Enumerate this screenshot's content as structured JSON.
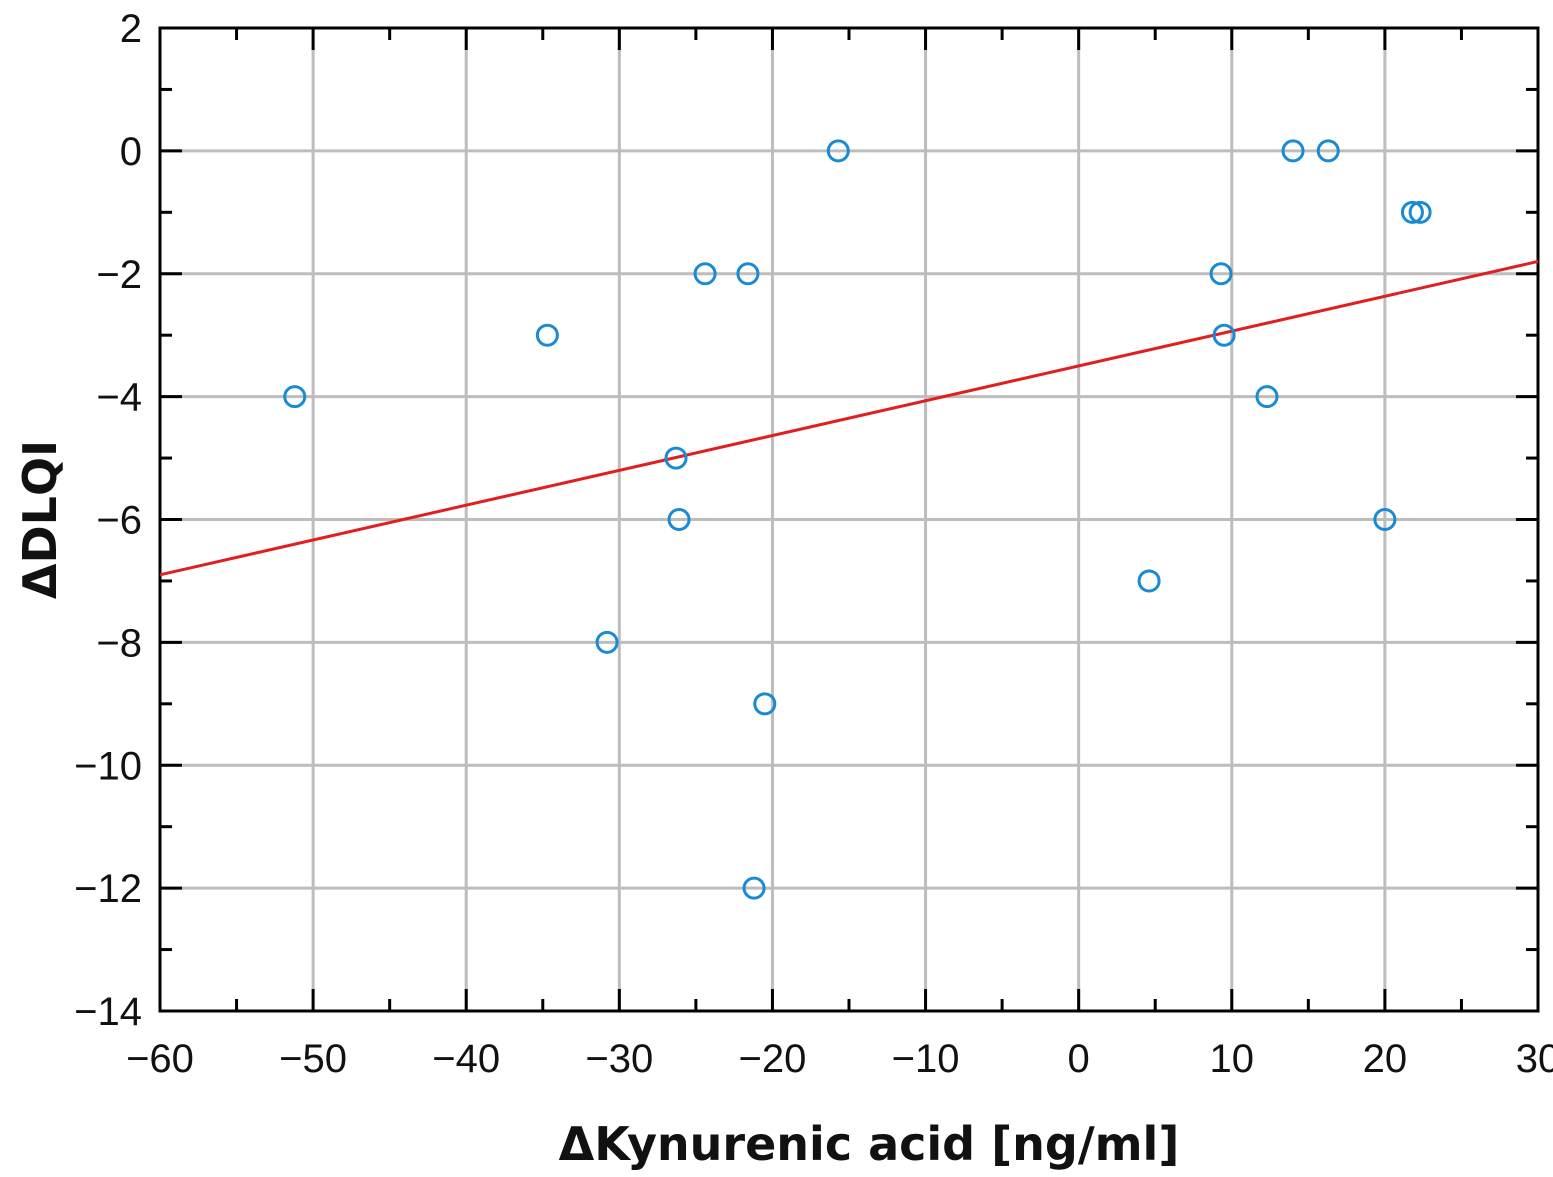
{
  "chart_data": {
    "type": "scatter",
    "title": "",
    "xlabel": "ΔKynurenic acid [ng/ml]",
    "ylabel": "ΔDLQI",
    "xlim": [
      -60,
      30
    ],
    "ylim": [
      -14,
      2
    ],
    "x_ticks": [
      -60,
      -50,
      -40,
      -30,
      -20,
      -10,
      0,
      10,
      20,
      30
    ],
    "y_ticks": [
      -14,
      -12,
      -10,
      -8,
      -6,
      -4,
      -2,
      0,
      2
    ],
    "x_tick_labels": [
      "−60",
      "−50",
      "−40",
      "−30",
      "−20",
      "−10",
      "0",
      "10",
      "20",
      "30"
    ],
    "y_tick_labels": [
      "−14",
      "−12",
      "−10",
      "−8",
      "−6",
      "−4",
      "−2",
      "0",
      "2"
    ],
    "grid": true,
    "colors": {
      "points": "#1a8ad4",
      "fit_line": "#e02020",
      "grid": "#bdbdbd",
      "axis": "#000000"
    },
    "series": [
      {
        "marker": "open-circle",
        "points": [
          {
            "x": -51.2,
            "y": -4
          },
          {
            "x": -34.7,
            "y": -3
          },
          {
            "x": -30.8,
            "y": -8
          },
          {
            "x": -26.3,
            "y": -5
          },
          {
            "x": -26.1,
            "y": -6
          },
          {
            "x": -24.4,
            "y": -2
          },
          {
            "x": -21.6,
            "y": -2
          },
          {
            "x": -21.2,
            "y": -12
          },
          {
            "x": -20.5,
            "y": -9
          },
          {
            "x": -15.7,
            "y": 0
          },
          {
            "x": 4.6,
            "y": -7
          },
          {
            "x": 9.3,
            "y": -2
          },
          {
            "x": 9.5,
            "y": -3
          },
          {
            "x": 12.3,
            "y": -4
          },
          {
            "x": 14.0,
            "y": 0
          },
          {
            "x": 16.3,
            "y": 0
          },
          {
            "x": 20.0,
            "y": -6
          },
          {
            "x": 21.8,
            "y": -1
          },
          {
            "x": 22.3,
            "y": -1
          }
        ]
      }
    ],
    "fit_line": {
      "type": "linear",
      "x": [
        -60,
        30
      ],
      "y": [
        -6.9,
        -1.8
      ]
    }
  }
}
